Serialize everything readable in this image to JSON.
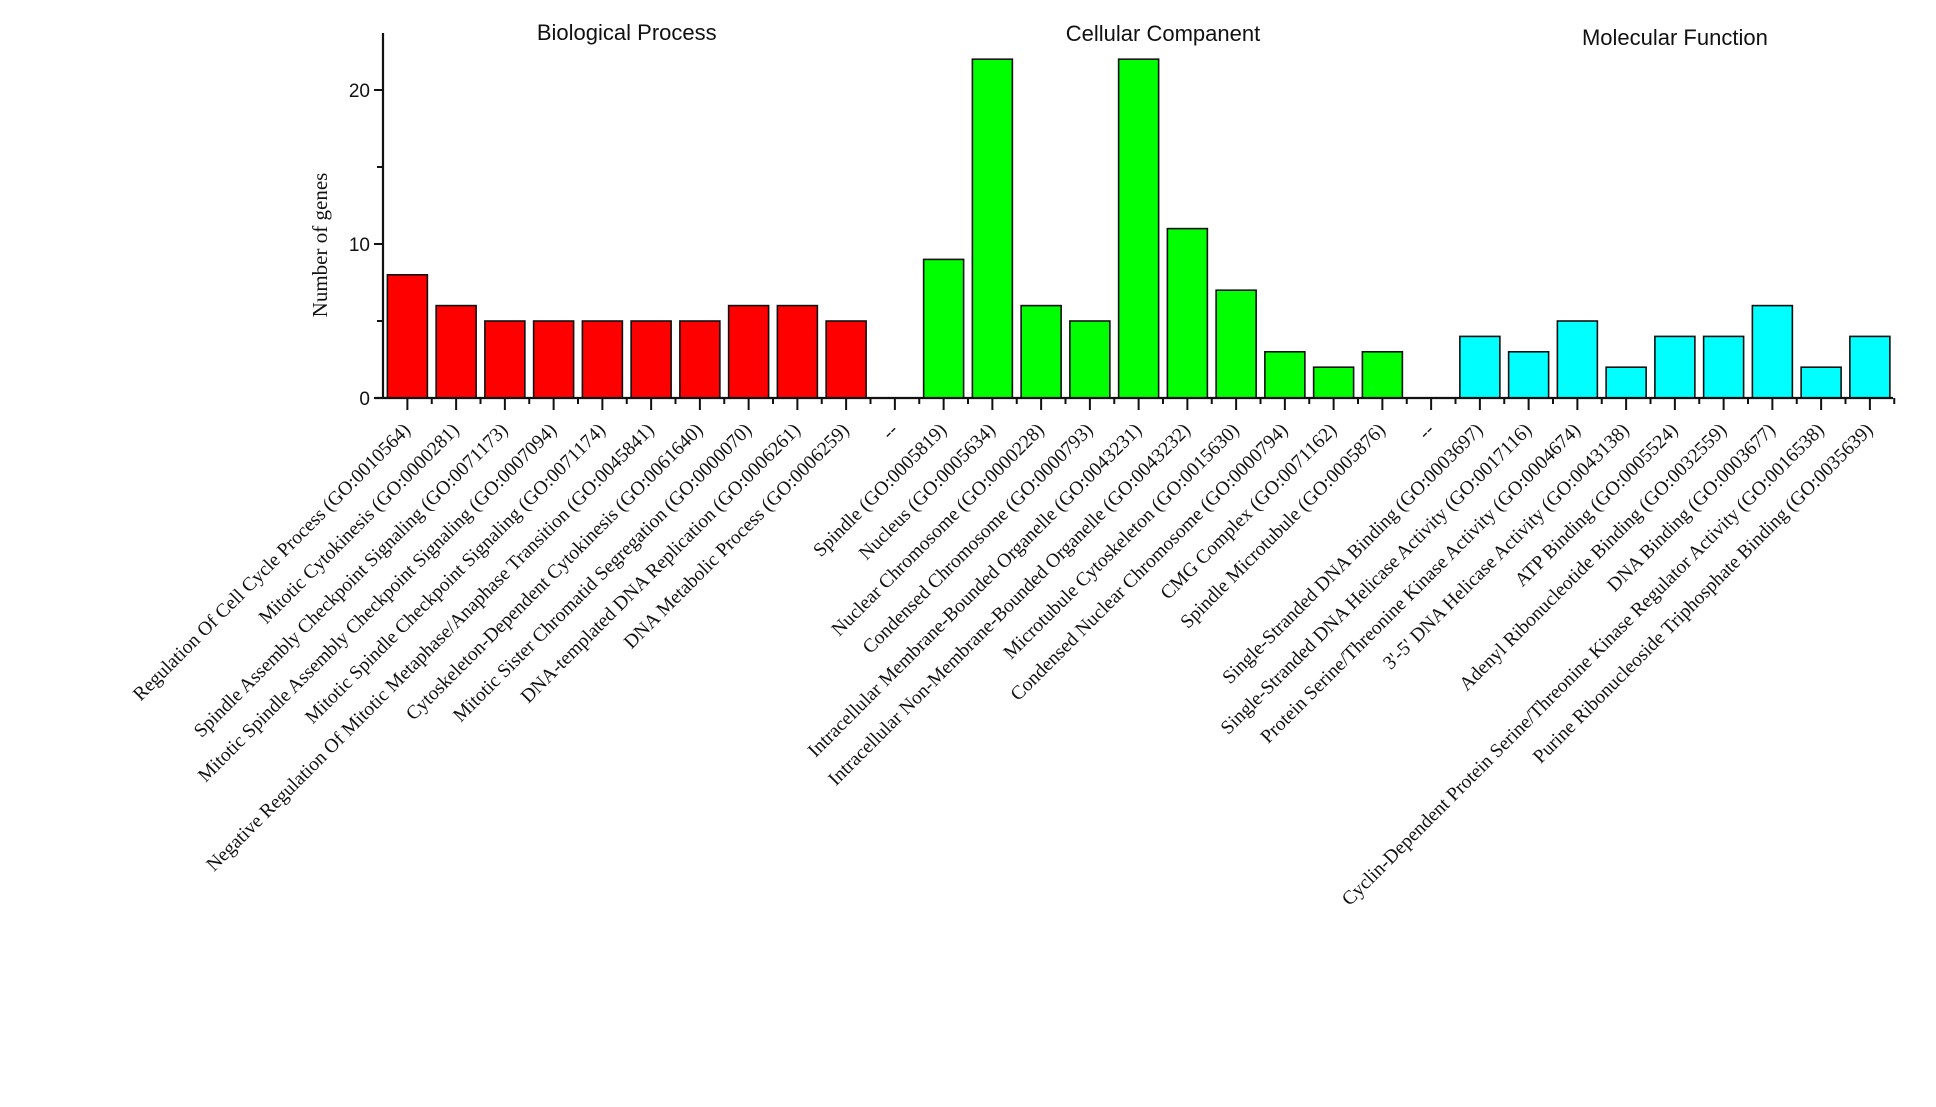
{
  "chart_data": {
    "type": "bar",
    "title": "",
    "xlabel": "",
    "ylabel": "Number of genes",
    "ylim": [
      0,
      24
    ],
    "yticks": [
      0,
      10,
      20
    ],
    "yminor_ticks": [
      5,
      15
    ],
    "grid": false,
    "legend": "none",
    "separator_label": "--",
    "groups": [
      {
        "name": "Biological Process",
        "color": "#ff0000",
        "categories": [
          "Regulation Of Cell Cycle Process (GO:0010564)",
          "Mitotic Cytokinesis (GO:0000281)",
          "Spindle Assembly Checkpoint Signaling (GO:0071173)",
          "Mitotic Spindle Assembly Checkpoint Signaling (GO:0007094)",
          "Mitotic Spindle Checkpoint Signaling (GO:0071174)",
          "Negative Regulation Of Mitotic Metaphase/Anaphase Transition (GO:0045841)",
          "Cytoskeleton-Dependent Cytokinesis (GO:0061640)",
          "Mitotic Sister Chromatid Segregation (GO:0000070)",
          "DNA-templated DNA Replication (GO:0006261)",
          "DNA Metabolic Process (GO:0006259)"
        ],
        "values": [
          8,
          6,
          5,
          5,
          5,
          5,
          5,
          6,
          6,
          5
        ]
      },
      {
        "name": "Cellular Companent",
        "color": "#00ff00",
        "categories": [
          "Spindle (GO:0005819)",
          "Nucleus (GO:0005634)",
          "Nuclear Chromosome (GO:0000228)",
          "Condensed Chromosome (GO:0000793)",
          "Intracellular Membrane-Bounded Organelle (GO:0043231)",
          "Intracellular Non-Membrane-Bounded Organelle (GO:0043232)",
          "Microtubule Cytoskeleton (GO:0015630)",
          "Condensed Nuclear Chromosome (GO:0000794)",
          "CMG Complex (GO:0071162)",
          "Spindle Microtubule (GO:0005876)"
        ],
        "values": [
          9,
          22,
          6,
          5,
          22,
          11,
          7,
          3,
          2,
          3
        ]
      },
      {
        "name": "Molecular Function",
        "color": "#00ffff",
        "categories": [
          "Single-Stranded DNA Binding (GO:0003697)",
          "Single-Stranded DNA Helicase Activity (GO:0017116)",
          "Protein Serine/Threonine Kinase Activity (GO:0004674)",
          "3'-5' DNA Helicase Activity (GO:0043138)",
          "ATP Binding (GO:0005524)",
          "Adenyl Ribonucleotide Binding (GO:0032559)",
          "DNA Binding (GO:0003677)",
          "Cyclin-Dependent Protein Serine/Threonine Kinase Regulator Activity (GO:0016538)",
          "Purine Ribonucleoside Triphosphate Binding (GO:0035639)"
        ],
        "values": [
          4,
          3,
          5,
          2,
          4,
          4,
          6,
          2,
          4
        ]
      }
    ]
  }
}
